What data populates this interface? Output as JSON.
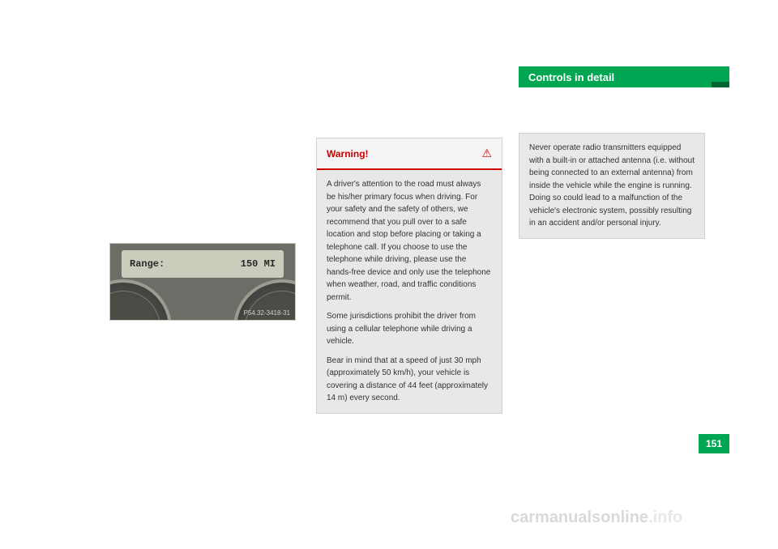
{
  "header": {
    "title": "Controls in detail",
    "bg": "#00a651"
  },
  "instrument": {
    "lcd_left": "Range:",
    "lcd_right": "150 MI",
    "code": "P54.32-3418-31"
  },
  "warning": {
    "label": "Warning!",
    "p1": "A driver's attention to the road must always be his/her primary focus when driving. For your safety and the safety of others, we recommend that you pull over to a safe location and stop before placing or taking a telephone call. If you choose to use the telephone while driving, please use the hands-free device and only use the telephone when weather, road, and traffic conditions permit.",
    "p2": "Some jurisdictions prohibit the driver from using a cellular telephone while driving a vehicle.",
    "p3": "Bear in mind that at a speed of just 30 mph (approximately 50 km/h), your vehicle is covering a distance of 44 feet (approximately 14 m) every second."
  },
  "graybox": {
    "text": "Never operate radio transmitters equipped with a built-in or attached antenna (i.e. without being connected to an external antenna) from inside the vehicle while the engine is running. Doing so could lead to a malfunction of the vehicle's electronic system, possibly resulting in an accident and/or personal injury."
  },
  "page_number": "151",
  "watermark": {
    "part1": "carmanualsonline",
    "part2": ".info"
  }
}
